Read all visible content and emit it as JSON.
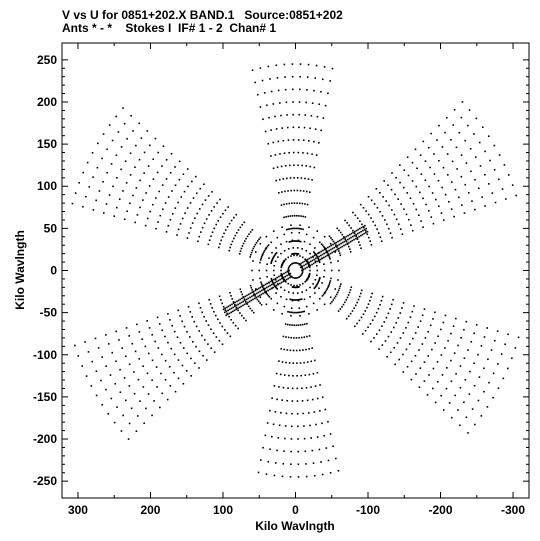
{
  "header": {
    "line1": "V vs U for 0851+202.X BAND.1   Source:0851+202",
    "line2": "Ants * - *    Stokes I  IF# 1 - 2  Chan# 1"
  },
  "chart_data": {
    "type": "scatter",
    "title": "V vs U for 0851+202.X BAND.1   Source:0851+202",
    "subtitle": "Ants * - *    Stokes I  IF# 1 - 2  Chan# 1",
    "xlabel": "Kilo Wavlngth",
    "ylabel": "Kilo Wavlngth",
    "xlim": [
      322,
      -322
    ],
    "ylim": [
      -270,
      270
    ],
    "x_reversed": true,
    "x_ticks": [
      300,
      200,
      100,
      0,
      -100,
      -200,
      -300
    ],
    "x_tick_labels": [
      "300",
      "200",
      "100",
      "0",
      "-100",
      "-200",
      "-300"
    ],
    "y_ticks": [
      -250,
      -200,
      -150,
      -100,
      -50,
      0,
      50,
      100,
      150,
      200,
      250
    ],
    "y_tick_labels": [
      "-250",
      "-200",
      "-150",
      "-100",
      "-50",
      "0",
      "50",
      "100",
      "150",
      "200",
      "250"
    ],
    "grid": false,
    "legend": "none",
    "marker_color": "#000000",
    "description": "Point-symmetric UV coverage: elliptical arc tracks forming a six-armed star with a dense core",
    "arms_deg": [
      90,
      30,
      -30
    ],
    "arm_max_radius": [
      255,
      330,
      330
    ],
    "arm_vertical_scale": 0.8,
    "track_spacing": 15,
    "arm_half_angle_deg": 14,
    "central_diagonal_angle_deg": 153,
    "central_diagonal_extent": 110
  }
}
